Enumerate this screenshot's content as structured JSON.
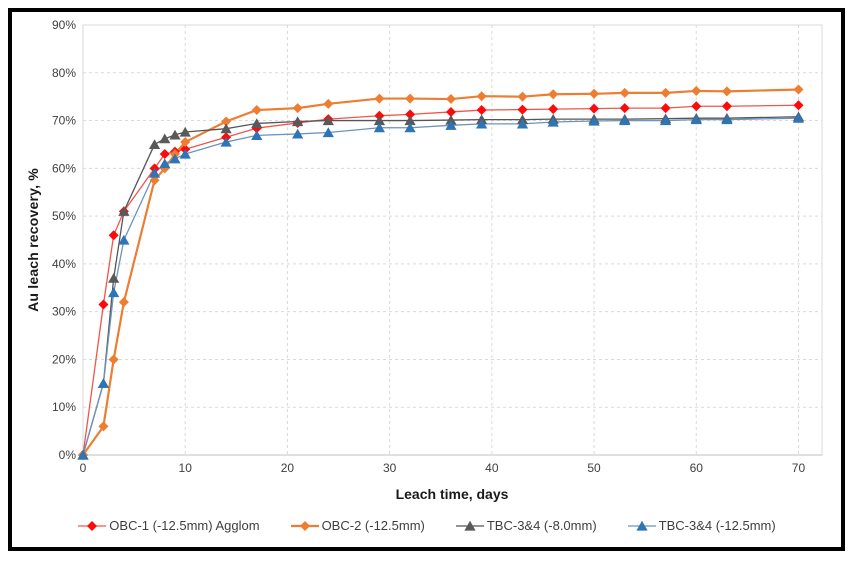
{
  "frame": {
    "border_color": "#000000",
    "background": "#ffffff"
  },
  "chart_data": {
    "type": "line",
    "title": "",
    "xlabel": "Leach time, days",
    "ylabel": "Au leach recovery, %",
    "xlim": [
      0,
      72.3
    ],
    "ylim": [
      0,
      90
    ],
    "x_ticks": [
      0,
      10,
      20,
      30,
      40,
      50,
      60,
      70
    ],
    "y_ticks": [
      0,
      10,
      20,
      30,
      40,
      50,
      60,
      70,
      80,
      90
    ],
    "y_tick_suffix": "%",
    "grid": true,
    "grid_color": "#d9d9d9",
    "plot_border_color": "#d9d9d9",
    "axis_line_color": "#bfbfbf",
    "axis_text_color": "#404040",
    "legend_position": "bottom",
    "x": [
      0,
      2,
      3,
      4,
      7,
      8,
      9,
      10,
      14,
      17,
      21,
      24,
      29,
      32,
      36,
      39,
      43,
      46,
      50,
      53,
      57,
      60,
      63,
      70
    ],
    "series": [
      {
        "name": "OBC-1 (-12.5mm) Agglom",
        "marker": "diamond",
        "marker_color": "#fe0a0a",
        "line_color": "#f0564a",
        "line_width": 1.3,
        "values": [
          0,
          31.5,
          46,
          51,
          60,
          63,
          63.5,
          64,
          66.5,
          68.4,
          69.5,
          70.3,
          71,
          71.3,
          71.8,
          72.2,
          72.3,
          72.4,
          72.5,
          72.6,
          72.6,
          73,
          73,
          73.2
        ]
      },
      {
        "name": "OBC-2 (-12.5mm)",
        "marker": "diamond",
        "marker_color": "#ed7d31",
        "line_color": "#ed7d31",
        "line_width": 2.2,
        "values": [
          0,
          6,
          20,
          32,
          57.5,
          60,
          63,
          65.5,
          69.8,
          72.2,
          72.6,
          73.5,
          74.6,
          74.6,
          74.5,
          75.1,
          75,
          75.5,
          75.6,
          75.8,
          75.8,
          76.2,
          76.1,
          76.5
        ]
      },
      {
        "name": "TBC-3&4 (-8.0mm)",
        "marker": "triangle",
        "marker_color": "#595959",
        "line_color": "#555555",
        "line_width": 1.3,
        "values": [
          0,
          15,
          37,
          51,
          65,
          66.2,
          67,
          67.6,
          68.3,
          69.4,
          69.8,
          70,
          70,
          70,
          70.1,
          70.2,
          70.2,
          70.3,
          70.3,
          70.3,
          70.4,
          70.5,
          70.5,
          70.8
        ]
      },
      {
        "name": "TBC-3&4 (-12.5mm)",
        "marker": "triangle",
        "marker_color": "#2e75b6",
        "line_color": "#6b94bd",
        "line_width": 1.3,
        "values": [
          0,
          15,
          34,
          45,
          59,
          61,
          62,
          63,
          65.5,
          66.9,
          67.2,
          67.5,
          68.5,
          68.5,
          69,
          69.3,
          69.3,
          69.7,
          69.9,
          70,
          70,
          70.2,
          70.2,
          70.5
        ]
      }
    ]
  }
}
